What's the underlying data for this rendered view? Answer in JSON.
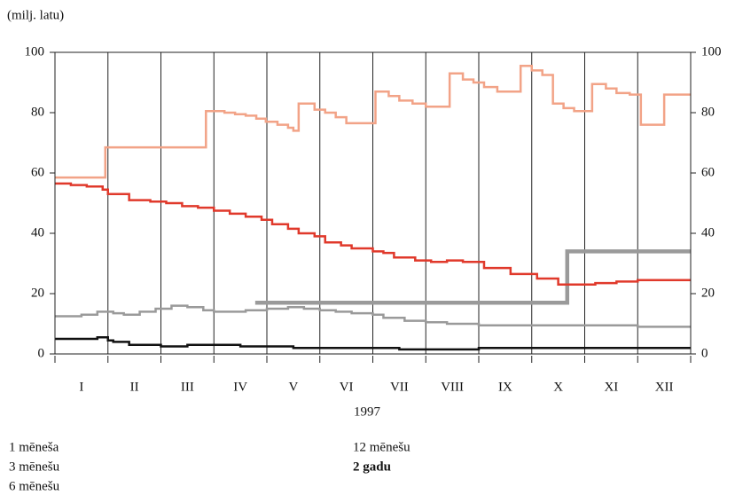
{
  "chart_data": {
    "type": "step",
    "unit_label": "(milj. latu)",
    "xlabel": "1997",
    "categories": [
      "I",
      "II",
      "III",
      "IV",
      "V",
      "VI",
      "VII",
      "VIII",
      "IX",
      "X",
      "XI",
      "XII"
    ],
    "xlim": [
      0,
      12
    ],
    "ylim": [
      0,
      100
    ],
    "yticks": [
      0,
      20,
      40,
      60,
      80,
      100
    ],
    "series": [
      {
        "name": "1 mēneša",
        "color": "#111111",
        "x": [
          0,
          0.8,
          1.0,
          1.1,
          1.4,
          2.0,
          2.5,
          3.0,
          3.5,
          4.0,
          4.5,
          5.0,
          6.5,
          8.0,
          12
        ],
        "values": [
          5,
          5.5,
          4.5,
          4,
          3,
          2.5,
          3,
          3,
          2.5,
          2.5,
          2,
          2,
          1.5,
          2,
          2
        ]
      },
      {
        "name": "3 mēnešu",
        "color": "#9a9a9a",
        "x": [
          0,
          0.5,
          0.8,
          1.1,
          1.3,
          1.6,
          1.9,
          2.2,
          2.5,
          2.8,
          3.0,
          3.6,
          4.0,
          4.4,
          4.7,
          5.0,
          5.3,
          5.6,
          6.0,
          6.2,
          6.6,
          7.0,
          7.4,
          8.0,
          11.0,
          12
        ],
        "values": [
          12.5,
          13,
          14,
          13.5,
          13,
          14,
          15,
          16,
          15.5,
          14.5,
          14,
          14.5,
          15,
          15.5,
          15,
          14.5,
          14,
          13.5,
          13,
          12,
          11,
          10.5,
          10,
          9.5,
          9,
          9
        ]
      },
      {
        "name": "6 mēnešu",
        "color": "#e0392b",
        "x": [
          0,
          0.3,
          0.6,
          0.9,
          1.0,
          1.4,
          1.8,
          2.1,
          2.4,
          2.7,
          3.0,
          3.3,
          3.6,
          3.9,
          4.1,
          4.4,
          4.6,
          4.9,
          5.1,
          5.4,
          5.6,
          6.0,
          6.2,
          6.4,
          6.8,
          7.1,
          7.4,
          7.7,
          8.1,
          8.6,
          9.1,
          9.5,
          10.2,
          10.6,
          11.0,
          12
        ],
        "values": [
          56.5,
          56,
          55.5,
          54.5,
          53,
          51,
          50.5,
          50,
          49,
          48.5,
          47.5,
          46.5,
          45.5,
          44.5,
          43,
          41.5,
          40,
          39,
          37,
          36,
          35,
          34,
          33.5,
          32,
          31,
          30.5,
          31,
          30.5,
          28.5,
          26.5,
          25,
          23,
          23.5,
          24,
          24.5,
          24.5
        ]
      },
      {
        "name": "12 mēnešu",
        "color": "#f2a387",
        "x": [
          0,
          0.95,
          2.85,
          3.2,
          3.4,
          3.6,
          3.8,
          3.98,
          4.2,
          4.4,
          4.5,
          4.6,
          4.9,
          5.1,
          5.3,
          5.5,
          6.05,
          6.3,
          6.5,
          6.75,
          7.0,
          7.45,
          7.7,
          7.9,
          8.1,
          8.35,
          8.79,
          9.0,
          9.2,
          9.4,
          9.6,
          9.8,
          10.14,
          10.4,
          10.6,
          10.85,
          11.06,
          11.5,
          12
        ],
        "values": [
          58.5,
          68.5,
          80.5,
          80,
          79.5,
          79,
          78,
          77,
          76,
          75,
          74,
          83,
          81,
          80,
          78.5,
          76.5,
          87,
          85.5,
          84,
          83,
          82,
          93,
          91,
          90,
          88.5,
          87,
          95.5,
          94,
          92.5,
          83,
          81.5,
          80.5,
          89.5,
          88,
          86.5,
          86,
          76,
          86,
          86
        ]
      },
      {
        "name": "2 gadu",
        "color": "#9a9a9a",
        "x": [
          3.78,
          9.67,
          12
        ],
        "values": [
          17,
          34,
          34
        ]
      }
    ]
  }
}
